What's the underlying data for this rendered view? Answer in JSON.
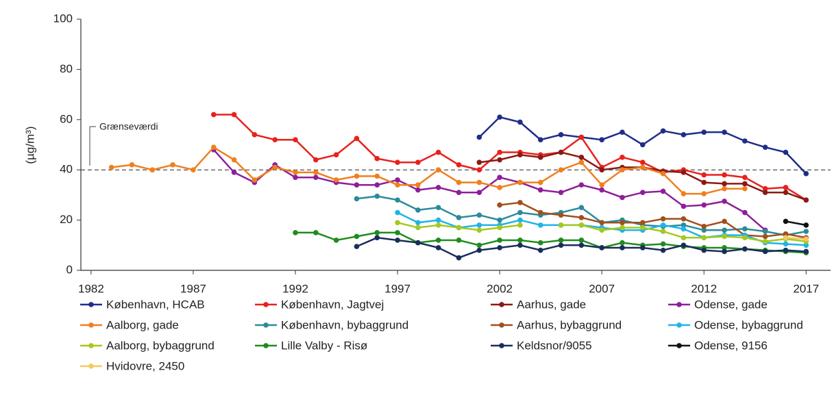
{
  "chart_data": {
    "type": "line",
    "y_label": "(µg/m³)",
    "reference_line": {
      "value": 40,
      "label": "Grænseværdi"
    },
    "x": [
      1983,
      1984,
      1985,
      1986,
      1987,
      1988,
      1989,
      1990,
      1991,
      1992,
      1993,
      1994,
      1995,
      1996,
      1997,
      1998,
      1999,
      2000,
      2001,
      2002,
      2003,
      2004,
      2005,
      2006,
      2007,
      2008,
      2009,
      2010,
      2011,
      2012,
      2013,
      2014,
      2015,
      2016,
      2017
    ],
    "xlim": [
      1981.5,
      2018.2
    ],
    "xticks": [
      1982,
      1987,
      1992,
      1997,
      2002,
      2007,
      2012,
      2017
    ],
    "ylim": [
      0,
      100
    ],
    "yticks": [
      0,
      20,
      40,
      60,
      80,
      100
    ],
    "series": [
      {
        "name": "København, HCAB",
        "color": "#1f2d8a",
        "values": [
          null,
          null,
          null,
          null,
          null,
          null,
          null,
          null,
          null,
          null,
          null,
          null,
          null,
          null,
          null,
          null,
          null,
          null,
          53,
          61,
          59,
          52,
          54,
          53,
          52,
          55,
          50,
          55.5,
          54,
          55,
          55,
          51.5,
          49,
          47,
          38.5
        ]
      },
      {
        "name": "København, Jagtvej",
        "color": "#e8211d",
        "values": [
          null,
          null,
          null,
          null,
          null,
          62,
          62,
          54,
          52,
          52,
          44,
          46,
          52.5,
          44.5,
          43,
          43,
          47,
          42,
          40,
          47,
          47,
          46,
          47,
          53,
          41,
          45,
          43,
          39,
          40,
          38,
          38,
          37,
          32.5,
          33,
          28
        ]
      },
      {
        "name": "Aarhus, gade",
        "color": "#8b1a12",
        "values": [
          null,
          null,
          null,
          null,
          null,
          null,
          null,
          null,
          null,
          null,
          null,
          null,
          null,
          null,
          null,
          null,
          null,
          null,
          43,
          44,
          46,
          45,
          47,
          45,
          40,
          41,
          41,
          39.5,
          39,
          35,
          34.5,
          34.5,
          31,
          31,
          28
        ]
      },
      {
        "name": "Odense, gade",
        "color": "#8e1e9a",
        "values": [
          null,
          null,
          null,
          null,
          null,
          48,
          39,
          35,
          42,
          37,
          37,
          35,
          34,
          34,
          36,
          32,
          33,
          31,
          31,
          37,
          35,
          32,
          31,
          34,
          32,
          29,
          31,
          31.5,
          25.5,
          26,
          27.5,
          23,
          16,
          null,
          null
        ]
      },
      {
        "name": "Aalborg, gade",
        "color": "#f07f1e",
        "values": [
          41,
          42,
          40,
          42,
          40,
          49,
          44,
          36,
          41,
          39,
          39,
          36,
          37.5,
          37.5,
          34,
          34,
          40,
          35,
          35,
          33,
          35,
          35,
          40,
          43,
          34,
          40,
          41,
          38.5,
          30.5,
          30.5,
          32.5,
          32.5,
          null,
          null,
          null
        ]
      },
      {
        "name": "København, bybaggrund",
        "color": "#2b8a9b",
        "values": [
          null,
          null,
          null,
          null,
          null,
          null,
          null,
          null,
          null,
          null,
          null,
          null,
          28.5,
          29.5,
          28,
          24,
          25,
          21,
          22,
          20,
          23,
          22,
          23,
          25,
          19,
          20,
          18,
          17.5,
          18,
          16,
          16,
          16.5,
          15.5,
          14,
          15.5
        ]
      },
      {
        "name": "Aarhus, bybaggrund",
        "color": "#a0501e",
        "values": [
          null,
          null,
          null,
          null,
          null,
          null,
          null,
          null,
          null,
          null,
          null,
          null,
          null,
          null,
          null,
          null,
          null,
          null,
          null,
          26,
          27,
          23,
          22,
          21,
          19,
          19,
          19,
          20.5,
          20.5,
          17.5,
          19.5,
          14,
          13.5,
          14.5,
          13
        ]
      },
      {
        "name": "Odense, bybaggrund",
        "color": "#1fb4e6",
        "values": [
          null,
          null,
          null,
          null,
          null,
          null,
          null,
          null,
          null,
          null,
          null,
          null,
          null,
          null,
          23,
          19,
          20,
          17,
          18,
          18,
          20,
          18,
          18,
          18,
          17,
          16,
          16,
          18,
          16.5,
          13,
          14,
          14,
          11,
          10.5,
          10
        ]
      },
      {
        "name": "Aalborg, bybaggrund",
        "color": "#a6c81e",
        "values": [
          null,
          null,
          null,
          null,
          null,
          null,
          null,
          null,
          null,
          null,
          null,
          null,
          null,
          null,
          19,
          17,
          18,
          17,
          16,
          17,
          18,
          null,
          18,
          18,
          16,
          17,
          17,
          15.5,
          13,
          13,
          13.5,
          13,
          11.5,
          12.5,
          11.5
        ]
      },
      {
        "name": "Lille Valby - Risø",
        "color": "#1e8c1e",
        "values": [
          null,
          null,
          null,
          null,
          null,
          null,
          null,
          null,
          null,
          15,
          15,
          12,
          13.5,
          15,
          15,
          11,
          12,
          12,
          10,
          12,
          12,
          11,
          12,
          12,
          9,
          11,
          10,
          10.5,
          9.5,
          9,
          9,
          8.5,
          8,
          7.5,
          7
        ]
      },
      {
        "name": "Keldsnor/9055",
        "color": "#1a2d5a",
        "values": [
          null,
          null,
          null,
          null,
          null,
          null,
          null,
          null,
          null,
          null,
          null,
          null,
          9.5,
          13,
          12,
          11,
          9,
          5,
          8,
          9,
          10,
          8,
          10,
          10,
          9,
          9,
          9,
          8,
          10,
          8,
          7.5,
          8.5,
          7.5,
          8,
          7.5
        ]
      },
      {
        "name": "Odense, 9156",
        "color": "#111111",
        "values": [
          null,
          null,
          null,
          null,
          null,
          null,
          null,
          null,
          null,
          null,
          null,
          null,
          null,
          null,
          null,
          null,
          null,
          null,
          null,
          null,
          null,
          null,
          null,
          null,
          null,
          null,
          null,
          null,
          null,
          null,
          null,
          null,
          null,
          19.5,
          18
        ]
      },
      {
        "name": "Hvidovre, 2450",
        "color": "#f5c860",
        "values": [
          null,
          null,
          null,
          null,
          null,
          null,
          null,
          null,
          null,
          null,
          null,
          null,
          null,
          null,
          null,
          null,
          null,
          null,
          null,
          null,
          null,
          null,
          null,
          null,
          null,
          null,
          null,
          null,
          null,
          null,
          null,
          null,
          null,
          13,
          12.5
        ]
      }
    ]
  }
}
